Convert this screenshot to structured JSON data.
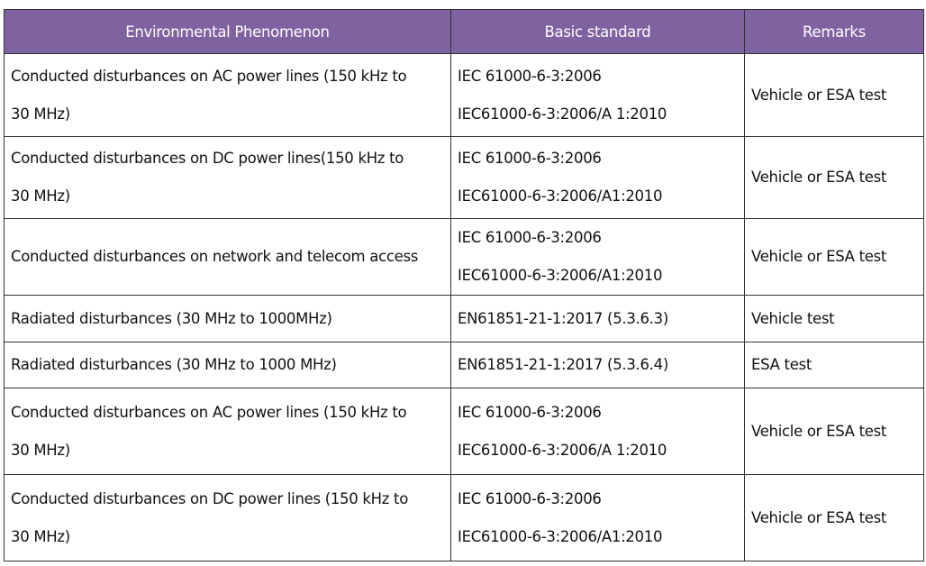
{
  "header": {
    "columns": [
      "Environmental Phenomenon",
      "Basic standard",
      "Remarks"
    ],
    "background_color": "#7f63a0"
  },
  "rows": [
    {
      "phenomenon": [
        "Conducted disturbances on AC power lines (150 kHz to",
        "30 MHz)"
      ],
      "standard": [
        "IEC 61000-6-3:2006",
        "IEC61000-6-3:2006/A 1:2010"
      ],
      "remarks": "Vehicle or ESA test"
    },
    {
      "phenomenon": [
        "Conducted disturbances on DC power lines(150 kHz to",
        "30 MHz)"
      ],
      "standard": [
        "IEC 61000-6-3:2006",
        "IEC61000-6-3:2006/A1:2010"
      ],
      "remarks": "Vehicle or ESA test"
    },
    {
      "phenomenon": [
        "Conducted disturbances on network and telecom access"
      ],
      "standard": [
        "IEC 61000-6-3:2006",
        "IEC61000-6-3:2006/A1:2010"
      ],
      "remarks": "Vehicle or ESA test"
    },
    {
      "phenomenon": [
        "Radiated disturbances (30 MHz to 1000MHz)"
      ],
      "standard": [
        "EN61851-21-1:2017 (5.3.6.3)"
      ],
      "remarks": "Vehicle test"
    },
    {
      "phenomenon": [
        "Radiated disturbances (30 MHz to 1000 MHz)"
      ],
      "standard": [
        "EN61851-21-1:2017 (5.3.6.4)"
      ],
      "remarks": "ESA test"
    },
    {
      "phenomenon": [
        "Conducted disturbances on AC power lines (150 kHz to",
        "30 MHz)"
      ],
      "standard": [
        "IEC 61000-6-3:2006",
        "IEC61000-6-3:2006/A 1:2010"
      ],
      "remarks": "Vehicle or ESA test"
    },
    {
      "phenomenon": [
        "Conducted disturbances on DC power lines (150 kHz to",
        "30 MHz)"
      ],
      "standard": [
        "IEC 61000-6-3:2006",
        "IEC61000-6-3:2006/A1:2010"
      ],
      "remarks": "Vehicle or ESA test"
    }
  ]
}
